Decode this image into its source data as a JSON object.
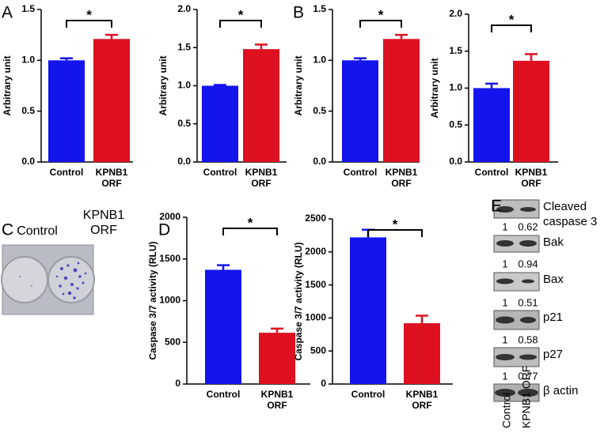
{
  "panel_labels": [
    "A",
    "B",
    "C",
    "D",
    "E"
  ],
  "chart_data": [
    {
      "type": "bar",
      "ylabel": "Arbitrary unit",
      "categories": [
        "Control",
        "KPNB1 ORF"
      ],
      "values": [
        1.0,
        1.21
      ],
      "errors": [
        0.02,
        0.04
      ],
      "colors": [
        "#1414ee",
        "#dd1020"
      ],
      "ylim": [
        0,
        1.5
      ],
      "yticks": [
        {
          "value": 0,
          "label": "0.0"
        },
        {
          "value": 0.5,
          "label": "0.5"
        },
        {
          "value": 1,
          "label": "1.0"
        },
        {
          "value": 1.5,
          "label": "1.5"
        }
      ],
      "annotation": "*"
    },
    {
      "type": "bar",
      "ylabel": "Arbitrary unit",
      "categories": [
        "Control",
        "KPNB1 ORF"
      ],
      "values": [
        1.0,
        1.48
      ],
      "errors": [
        0.01,
        0.06
      ],
      "colors": [
        "#1414ee",
        "#dd1020"
      ],
      "ylim": [
        0,
        2
      ],
      "yticks": [
        {
          "value": 0,
          "label": "0.0"
        },
        {
          "value": 0.5,
          "label": "0.5"
        },
        {
          "value": 1,
          "label": "1.0"
        },
        {
          "value": 1.5,
          "label": "1.5"
        },
        {
          "value": 2,
          "label": "2.0"
        }
      ],
      "annotation": "*"
    },
    {
      "type": "bar",
      "ylabel": "Arbitrary unit",
      "categories": [
        "Control",
        "KPNB1 ORF"
      ],
      "values": [
        1.0,
        1.21
      ],
      "errors": [
        0.02,
        0.04
      ],
      "colors": [
        "#1414ee",
        "#dd1020"
      ],
      "ylim": [
        0,
        1.5
      ],
      "yticks": [
        {
          "value": 0,
          "label": "0.0"
        },
        {
          "value": 0.5,
          "label": "0.5"
        },
        {
          "value": 1,
          "label": "1.0"
        },
        {
          "value": 1.5,
          "label": "1.5"
        }
      ],
      "annotation": "*"
    },
    {
      "type": "bar",
      "ylabel": "Arbitrary unit",
      "categories": [
        "Control",
        "KPNB1 ORF"
      ],
      "values": [
        1.0,
        1.37
      ],
      "errors": [
        0.06,
        0.09
      ],
      "colors": [
        "#1414ee",
        "#dd1020"
      ],
      "ylim": [
        0,
        2
      ],
      "yticks": [
        {
          "value": 0,
          "label": "0.0"
        },
        {
          "value": 0.5,
          "label": "0.5"
        },
        {
          "value": 1,
          "label": "1.0"
        },
        {
          "value": 1.5,
          "label": "1.5"
        },
        {
          "value": 2,
          "label": "2.0"
        }
      ],
      "annotation": "*"
    },
    {
      "type": "bar",
      "ylabel": "Caspase 3/7 activity (RLU)",
      "categories": [
        "Control",
        "KPNB1 ORF"
      ],
      "values": [
        1370,
        615
      ],
      "errors": [
        55,
        50
      ],
      "colors": [
        "#1414ee",
        "#dd1020"
      ],
      "ylim": [
        0,
        2000
      ],
      "yticks": [
        0,
        500,
        1000,
        1500,
        2000
      ],
      "annotation": "*"
    },
    {
      "type": "bar",
      "ylabel": "Caspase 3/7 activity (RLU)",
      "categories": [
        "Control",
        "KPNB1 ORF"
      ],
      "values": [
        2220,
        920
      ],
      "errors": [
        115,
        115
      ],
      "colors": [
        "#1414ee",
        "#dd1020"
      ],
      "ylim": [
        0,
        2500
      ],
      "yticks": [
        0,
        500,
        1000,
        1500,
        2000,
        2500
      ],
      "annotation": "*"
    }
  ],
  "colony_assay": {
    "labels": [
      "Control",
      "KPNB1 ORF"
    ]
  },
  "western_blot": {
    "rows": [
      {
        "label": "Cleaved caspase 3",
        "ratios": [
          1,
          0.62
        ]
      },
      {
        "label": "Bak",
        "ratios": [
          1,
          0.94
        ]
      },
      {
        "label": "Bax",
        "ratios": [
          1,
          0.51
        ]
      },
      {
        "label": "p21",
        "ratios": [
          1,
          0.58
        ]
      },
      {
        "label": "p27",
        "ratios": [
          1,
          0.77
        ]
      },
      {
        "label": "β actin"
      }
    ],
    "lanes": [
      "Control",
      "KPNB1 ORF"
    ]
  }
}
